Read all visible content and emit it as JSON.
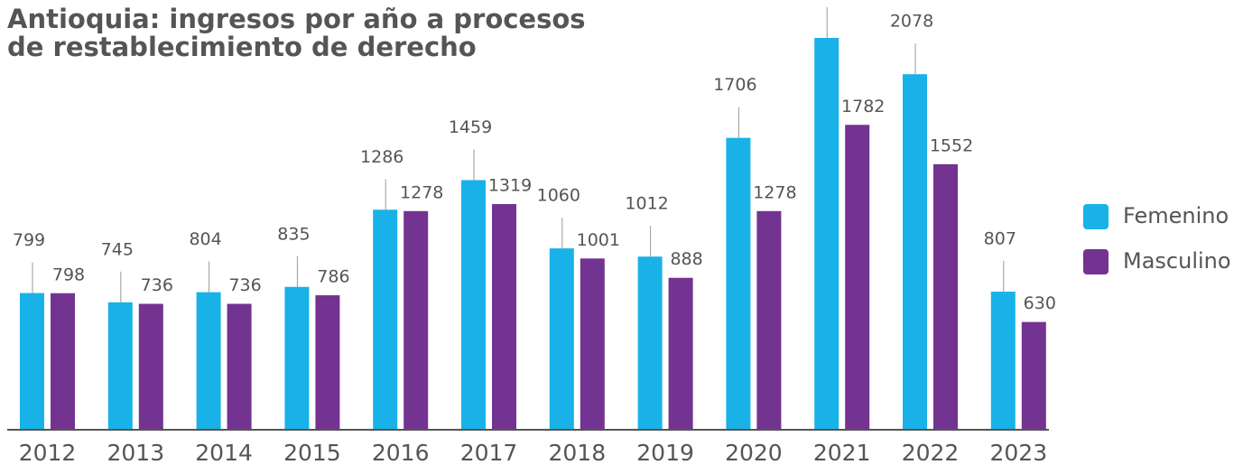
{
  "chart_data": {
    "type": "bar",
    "title": "Antioquia: ingresos por año a procesos de restablecimiento de derecho",
    "categories": [
      "2012",
      "2013",
      "2014",
      "2015",
      "2016",
      "2017",
      "2018",
      "2019",
      "2020",
      "2021",
      "2022",
      "2023"
    ],
    "series": [
      {
        "name": "Femenino",
        "color": "#19b2e8",
        "values": [
          799,
          745,
          804,
          835,
          1286,
          1459,
          1060,
          1012,
          1706,
          2290,
          2078,
          807
        ]
      },
      {
        "name": "Masculino",
        "color": "#733391",
        "values": [
          798,
          736,
          736,
          786,
          1278,
          1319,
          1001,
          888,
          1278,
          1782,
          1552,
          630
        ]
      }
    ],
    "legend": "right"
  }
}
